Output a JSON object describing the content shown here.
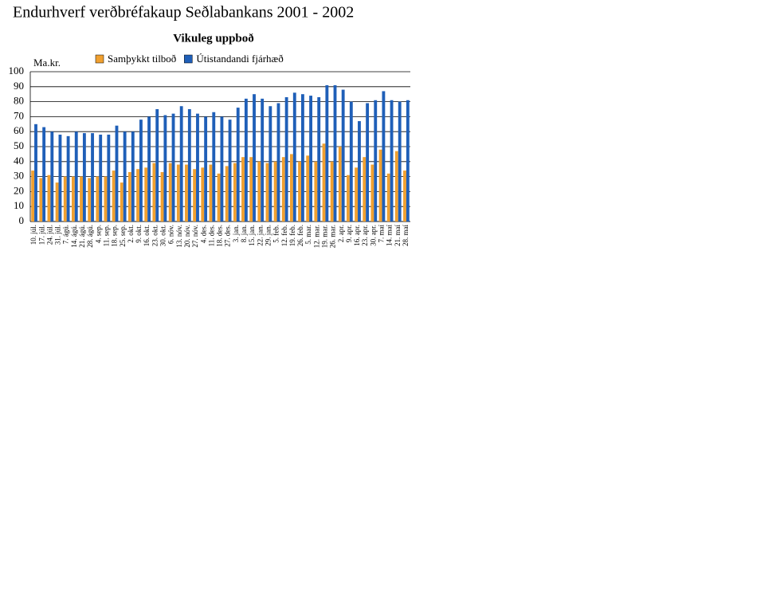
{
  "chart_data": {
    "type": "bar",
    "title": "Endurhverf verðbréfakaup Seðlabankans 2001 - 2002",
    "subtitle": "Vikuleg uppboð",
    "y_label": "Ma.kr.",
    "categories": [
      "10. júl.",
      "17. júl.",
      "24. júl.",
      "31. júl.",
      "7. ágú.",
      "14. ágú.",
      "21. ágú.",
      "28. ágú.",
      "4. sep.",
      "11. sep.",
      "18. sep.",
      "25. sep.",
      "2. okt.",
      "9. okt.",
      "16. okt.",
      "23. okt.",
      "30. okt.",
      "6. nóv.",
      "13. nóv.",
      "20. nóv.",
      "27. nóv.",
      "4. des.",
      "11. des.",
      "18. des.",
      "27. des.",
      "3. jan.",
      "8. jan.",
      "15. jan.",
      "22. jan.",
      "29. jan.",
      "5. feb.",
      "12. feb.",
      "19. feb.",
      "26. feb.",
      "5. mar.",
      "12. mar.",
      "19. mar.",
      "26. mar.",
      "2. apr.",
      "9. apr.",
      "16. apr.",
      "23. apr.",
      "30. apr.",
      "7. maí",
      "14. maí",
      "21. maí",
      "28. maí"
    ],
    "series": [
      {
        "name": "Samþykkt tilboð",
        "color": "#f0a030",
        "values": [
          34,
          29,
          31,
          26,
          30,
          30,
          30,
          29,
          30,
          30,
          34,
          26,
          33,
          35,
          36,
          39,
          33,
          39,
          38,
          38,
          35,
          36,
          38,
          32,
          37,
          39,
          43,
          43,
          40,
          39,
          40,
          43,
          45,
          40,
          44,
          40,
          52,
          40,
          50,
          31,
          36,
          43,
          38,
          48,
          32,
          47,
          34
        ]
      },
      {
        "name": "Útistandandi fjárhæð",
        "color": "#1f5fb8",
        "values": [
          65,
          63,
          60,
          58,
          57,
          60,
          59,
          59,
          58,
          58,
          64,
          60,
          60,
          68,
          70,
          75,
          71,
          72,
          77,
          75,
          72,
          70,
          73,
          70,
          68,
          76,
          82,
          85,
          82,
          77,
          79,
          83,
          86,
          85,
          84,
          83,
          91,
          91,
          88,
          80,
          67,
          79,
          81,
          87,
          81,
          80,
          81
        ]
      }
    ],
    "ylim": [
      0,
      100
    ],
    "yticks": [
      0,
      10,
      20,
      30,
      40,
      50,
      60,
      70,
      80,
      90,
      100
    ],
    "grid": true
  }
}
